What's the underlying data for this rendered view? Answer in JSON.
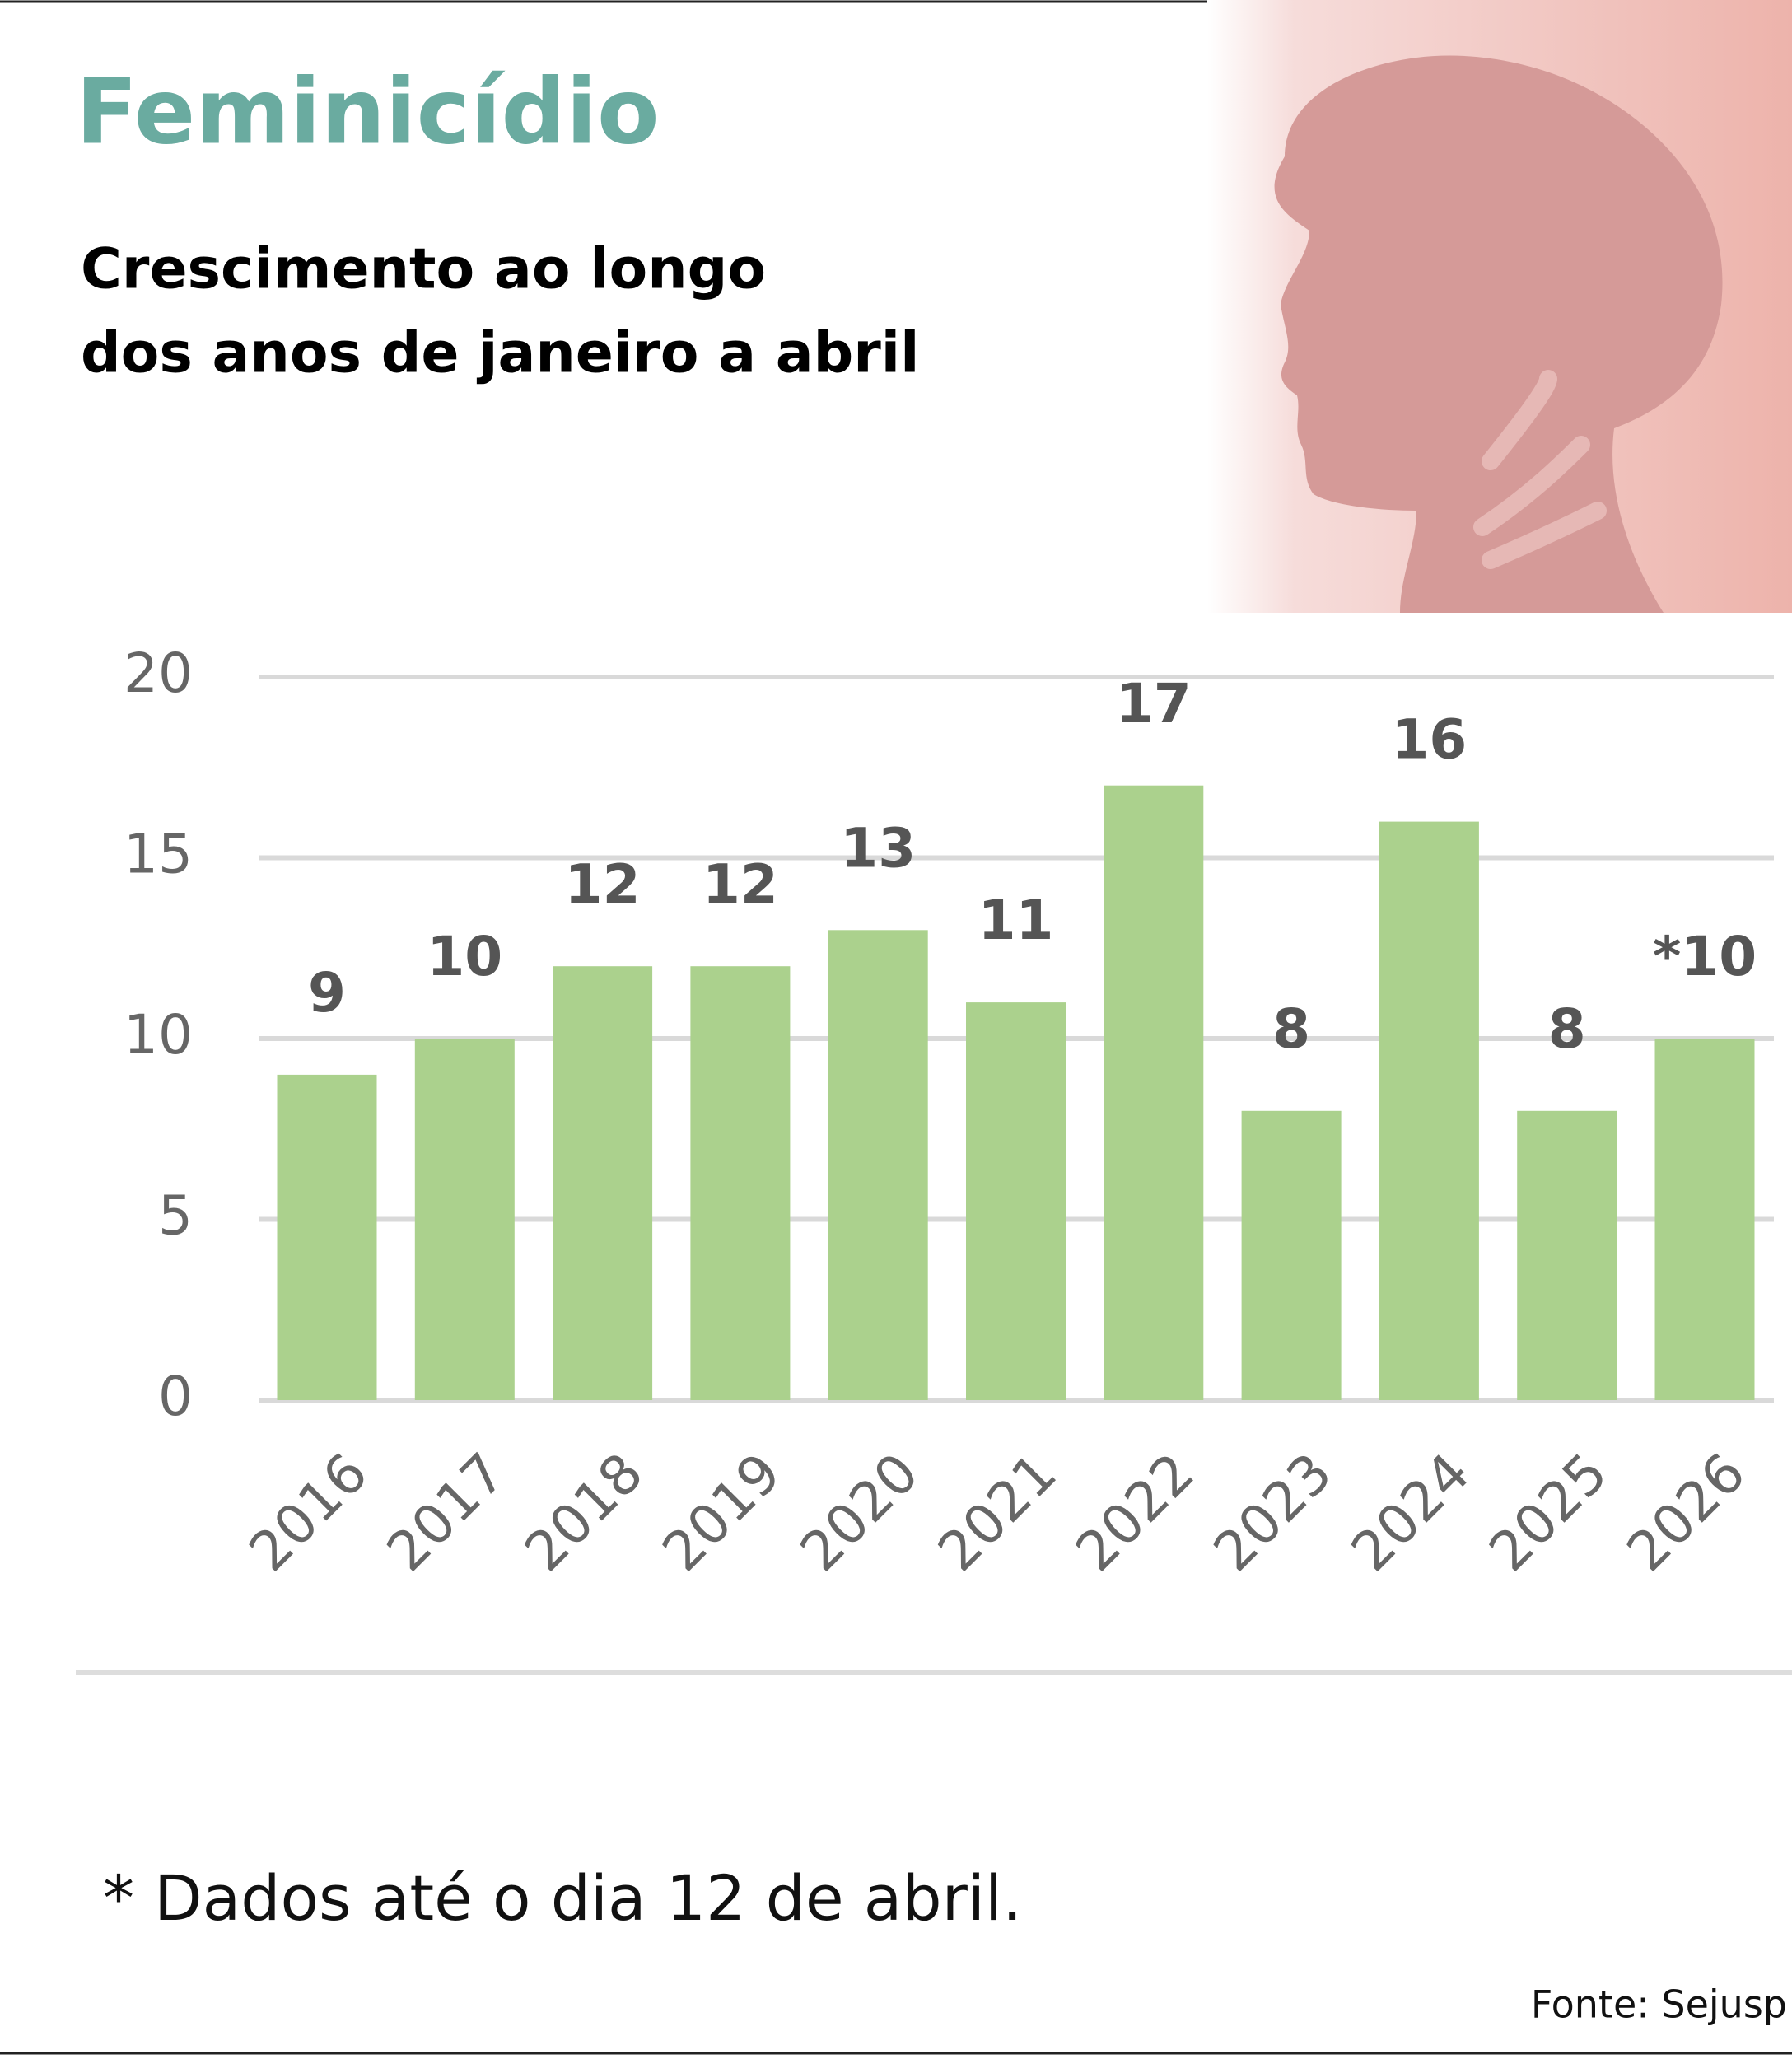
{
  "chart_data": {
    "type": "bar",
    "title": "Feminicídio",
    "subtitle": [
      "Crescimento ao longo",
      "dos anos de janeiro a abril"
    ],
    "categories": [
      "2016",
      "2017",
      "2018",
      "2019",
      "2020",
      "2021",
      "2022",
      "2023",
      "2024",
      "2025",
      "2026"
    ],
    "values": [
      9,
      10,
      12,
      12,
      13,
      11,
      17,
      8,
      16,
      8,
      10
    ],
    "value_labels": [
      "9",
      "10",
      "12",
      "12",
      "13",
      "11",
      "17",
      "8",
      "16",
      "8",
      "*10"
    ],
    "color": "#abd18d",
    "ylim": [
      0,
      20
    ],
    "yticks": [
      0,
      5,
      10,
      15,
      20
    ],
    "grid": true,
    "footnote": "* Dados até o dia 12 de abril.",
    "source": "Fonte: Sejusp"
  }
}
